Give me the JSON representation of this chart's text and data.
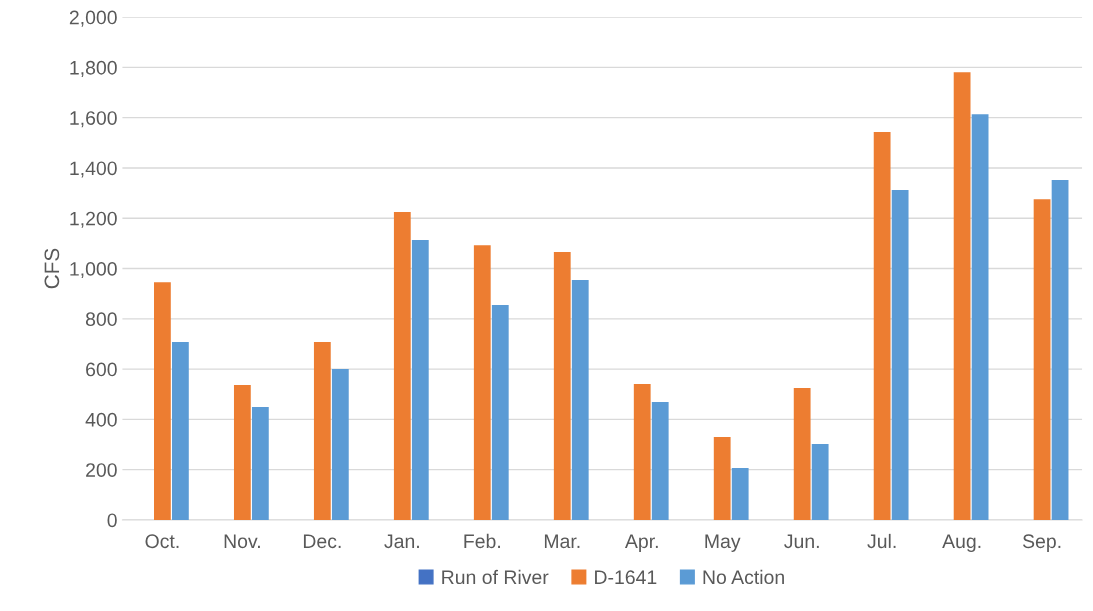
{
  "chart_data": {
    "type": "bar",
    "ylabel": "CFS",
    "categories": [
      "Oct.",
      "Nov.",
      "Dec.",
      "Jan.",
      "Feb.",
      "Mar.",
      "Apr.",
      "May",
      "Jun.",
      "Jul.",
      "Aug.",
      "Sep."
    ],
    "series": [
      {
        "name": "Run of River",
        "color": "#4472c4",
        "values": [
          0,
          0,
          0,
          0,
          0,
          0,
          0,
          0,
          0,
          0,
          0,
          0
        ]
      },
      {
        "name": "D-1641",
        "color": "#ed7d31",
        "values": [
          945,
          537,
          708,
          1225,
          1093,
          1066,
          541,
          330,
          525,
          1543,
          1781,
          1276
        ]
      },
      {
        "name": "No Action",
        "color": "#5b9bd5",
        "values": [
          708,
          449,
          600,
          1113,
          855,
          954,
          469,
          207,
          302,
          1312,
          1614,
          1352
        ]
      }
    ],
    "ylim": [
      0,
      2000
    ],
    "yticks": [
      {
        "value": 0,
        "label": "0"
      },
      {
        "value": 200,
        "label": "200"
      },
      {
        "value": 400,
        "label": "400"
      },
      {
        "value": 600,
        "label": "600"
      },
      {
        "value": 800,
        "label": "800"
      },
      {
        "value": 1000,
        "label": "1,000"
      },
      {
        "value": 1200,
        "label": "1,200"
      },
      {
        "value": 1400,
        "label": "1,400"
      },
      {
        "value": 1600,
        "label": "1,600"
      },
      {
        "value": 1800,
        "label": "1,800"
      },
      {
        "value": 2000,
        "label": "2,000"
      }
    ],
    "grid": "y",
    "legend": "bottom"
  }
}
